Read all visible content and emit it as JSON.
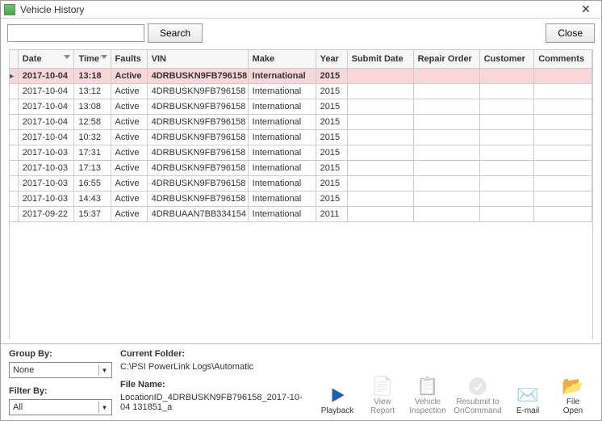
{
  "window": {
    "title": "Vehicle History"
  },
  "toolbar": {
    "search_value": "",
    "search_button": "Search",
    "close_button": "Close"
  },
  "grid": {
    "columns": {
      "date": "Date",
      "time": "Time",
      "faults": "Faults",
      "vin": "VIN",
      "make": "Make",
      "year": "Year",
      "submit": "Submit Date",
      "repair": "Repair Order",
      "customer": "Customer",
      "comments": "Comments"
    },
    "rows": [
      {
        "date": "2017-10-04",
        "time": "13:18",
        "faults": "Active",
        "vin": "4DRBUSKN9FB796158",
        "make": "International",
        "year": "2015",
        "selected": true
      },
      {
        "date": "2017-10-04",
        "time": "13:12",
        "faults": "Active",
        "vin": "4DRBUSKN9FB796158",
        "make": "International",
        "year": "2015"
      },
      {
        "date": "2017-10-04",
        "time": "13:08",
        "faults": "Active",
        "vin": "4DRBUSKN9FB796158",
        "make": "International",
        "year": "2015"
      },
      {
        "date": "2017-10-04",
        "time": "12:58",
        "faults": "Active",
        "vin": "4DRBUSKN9FB796158",
        "make": "International",
        "year": "2015"
      },
      {
        "date": "2017-10-04",
        "time": "10:32",
        "faults": "Active",
        "vin": "4DRBUSKN9FB796158",
        "make": "International",
        "year": "2015"
      },
      {
        "date": "2017-10-03",
        "time": "17:31",
        "faults": "Active",
        "vin": "4DRBUSKN9FB796158",
        "make": "International",
        "year": "2015"
      },
      {
        "date": "2017-10-03",
        "time": "17:13",
        "faults": "Active",
        "vin": "4DRBUSKN9FB796158",
        "make": "International",
        "year": "2015"
      },
      {
        "date": "2017-10-03",
        "time": "16:55",
        "faults": "Active",
        "vin": "4DRBUSKN9FB796158",
        "make": "International",
        "year": "2015"
      },
      {
        "date": "2017-10-03",
        "time": "14:43",
        "faults": "Active",
        "vin": "4DRBUSKN9FB796158",
        "make": "International",
        "year": "2015"
      },
      {
        "date": "2017-09-22",
        "time": "15:37",
        "faults": "Active",
        "vin": "4DRBUAAN7BB334154",
        "make": "International",
        "year": "2011"
      }
    ]
  },
  "bottom": {
    "group_by_label": "Group By:",
    "group_by_value": "None",
    "filter_by_label": "Filter By:",
    "filter_by_value": "All",
    "current_folder_label": "Current Folder:",
    "current_folder_value": "C:\\PSI PowerLink Logs\\Automatic",
    "file_name_label": "File Name:",
    "file_name_value": "LocationID_4DRBUSKN9FB796158_2017-10-04  131851_a"
  },
  "actions": {
    "playback": "Playback",
    "view_report": "View\nReport",
    "vehicle_inspection": "Vehicle\nInspection",
    "resubmit": "Resubmit to\nOnCommand",
    "email": "E-mail",
    "file_open": "File\nOpen"
  }
}
